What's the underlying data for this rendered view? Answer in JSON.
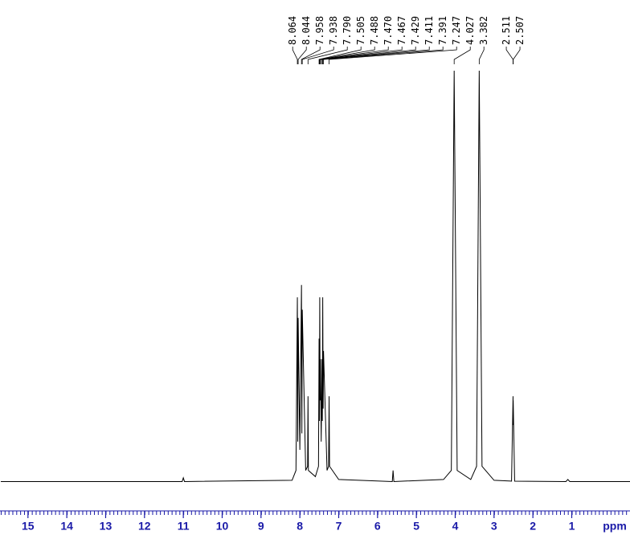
{
  "chart_data": {
    "type": "spectrum",
    "x_label": "ppm",
    "xlim": [
      15.72,
      -0.5
    ],
    "ylim": [
      0,
      100
    ],
    "xticks": [
      15,
      14,
      13,
      12,
      11,
      10,
      9,
      8,
      7,
      6,
      5,
      4,
      3,
      2,
      1
    ],
    "color": "#000000",
    "axis_color": "#1a1aa8",
    "peaks": [
      8.064,
      8.044,
      7.958,
      7.938,
      {
        "value": 7.79,
        "label": "7.790"
      },
      7.505,
      7.488,
      {
        "value": 7.47,
        "label": "7.470"
      },
      7.467,
      7.429,
      7.411,
      7.391,
      7.247,
      4.027,
      3.382,
      2.511,
      2.507
    ],
    "x": [
      15.7,
      11.03,
      11.0,
      10.97,
      8.2,
      8.1,
      8.064,
      8.054,
      8.044,
      8.0,
      7.958,
      7.948,
      7.938,
      7.85,
      7.8,
      7.79,
      7.78,
      7.6,
      7.52,
      7.505,
      7.496,
      7.488,
      7.479,
      7.47,
      7.467,
      7.45,
      7.429,
      7.42,
      7.411,
      7.4,
      7.391,
      7.3,
      7.26,
      7.247,
      7.235,
      7.0,
      5.62,
      5.6,
      5.58,
      4.3,
      4.1,
      4.027,
      3.95,
      3.6,
      3.45,
      3.382,
      3.31,
      3.0,
      2.55,
      2.511,
      2.509,
      2.507,
      2.47,
      1.15,
      1.1,
      1.05,
      -0.5
    ],
    "values": [
      0.3,
      0.3,
      1.2,
      0.3,
      0.6,
      3,
      45,
      10,
      40,
      8,
      48,
      12,
      42,
      3,
      4,
      21,
      3,
      1.5,
      4,
      35,
      15,
      45,
      20,
      30,
      28,
      10,
      30,
      15,
      45,
      18,
      32,
      3,
      4,
      21,
      4,
      0.8,
      0.3,
      3,
      0.3,
      0.8,
      3,
      100,
      3,
      0.8,
      4,
      100,
      4,
      0.6,
      0.4,
      21,
      14,
      20,
      0.4,
      0.3,
      0.8,
      0.3,
      0.3
    ]
  }
}
